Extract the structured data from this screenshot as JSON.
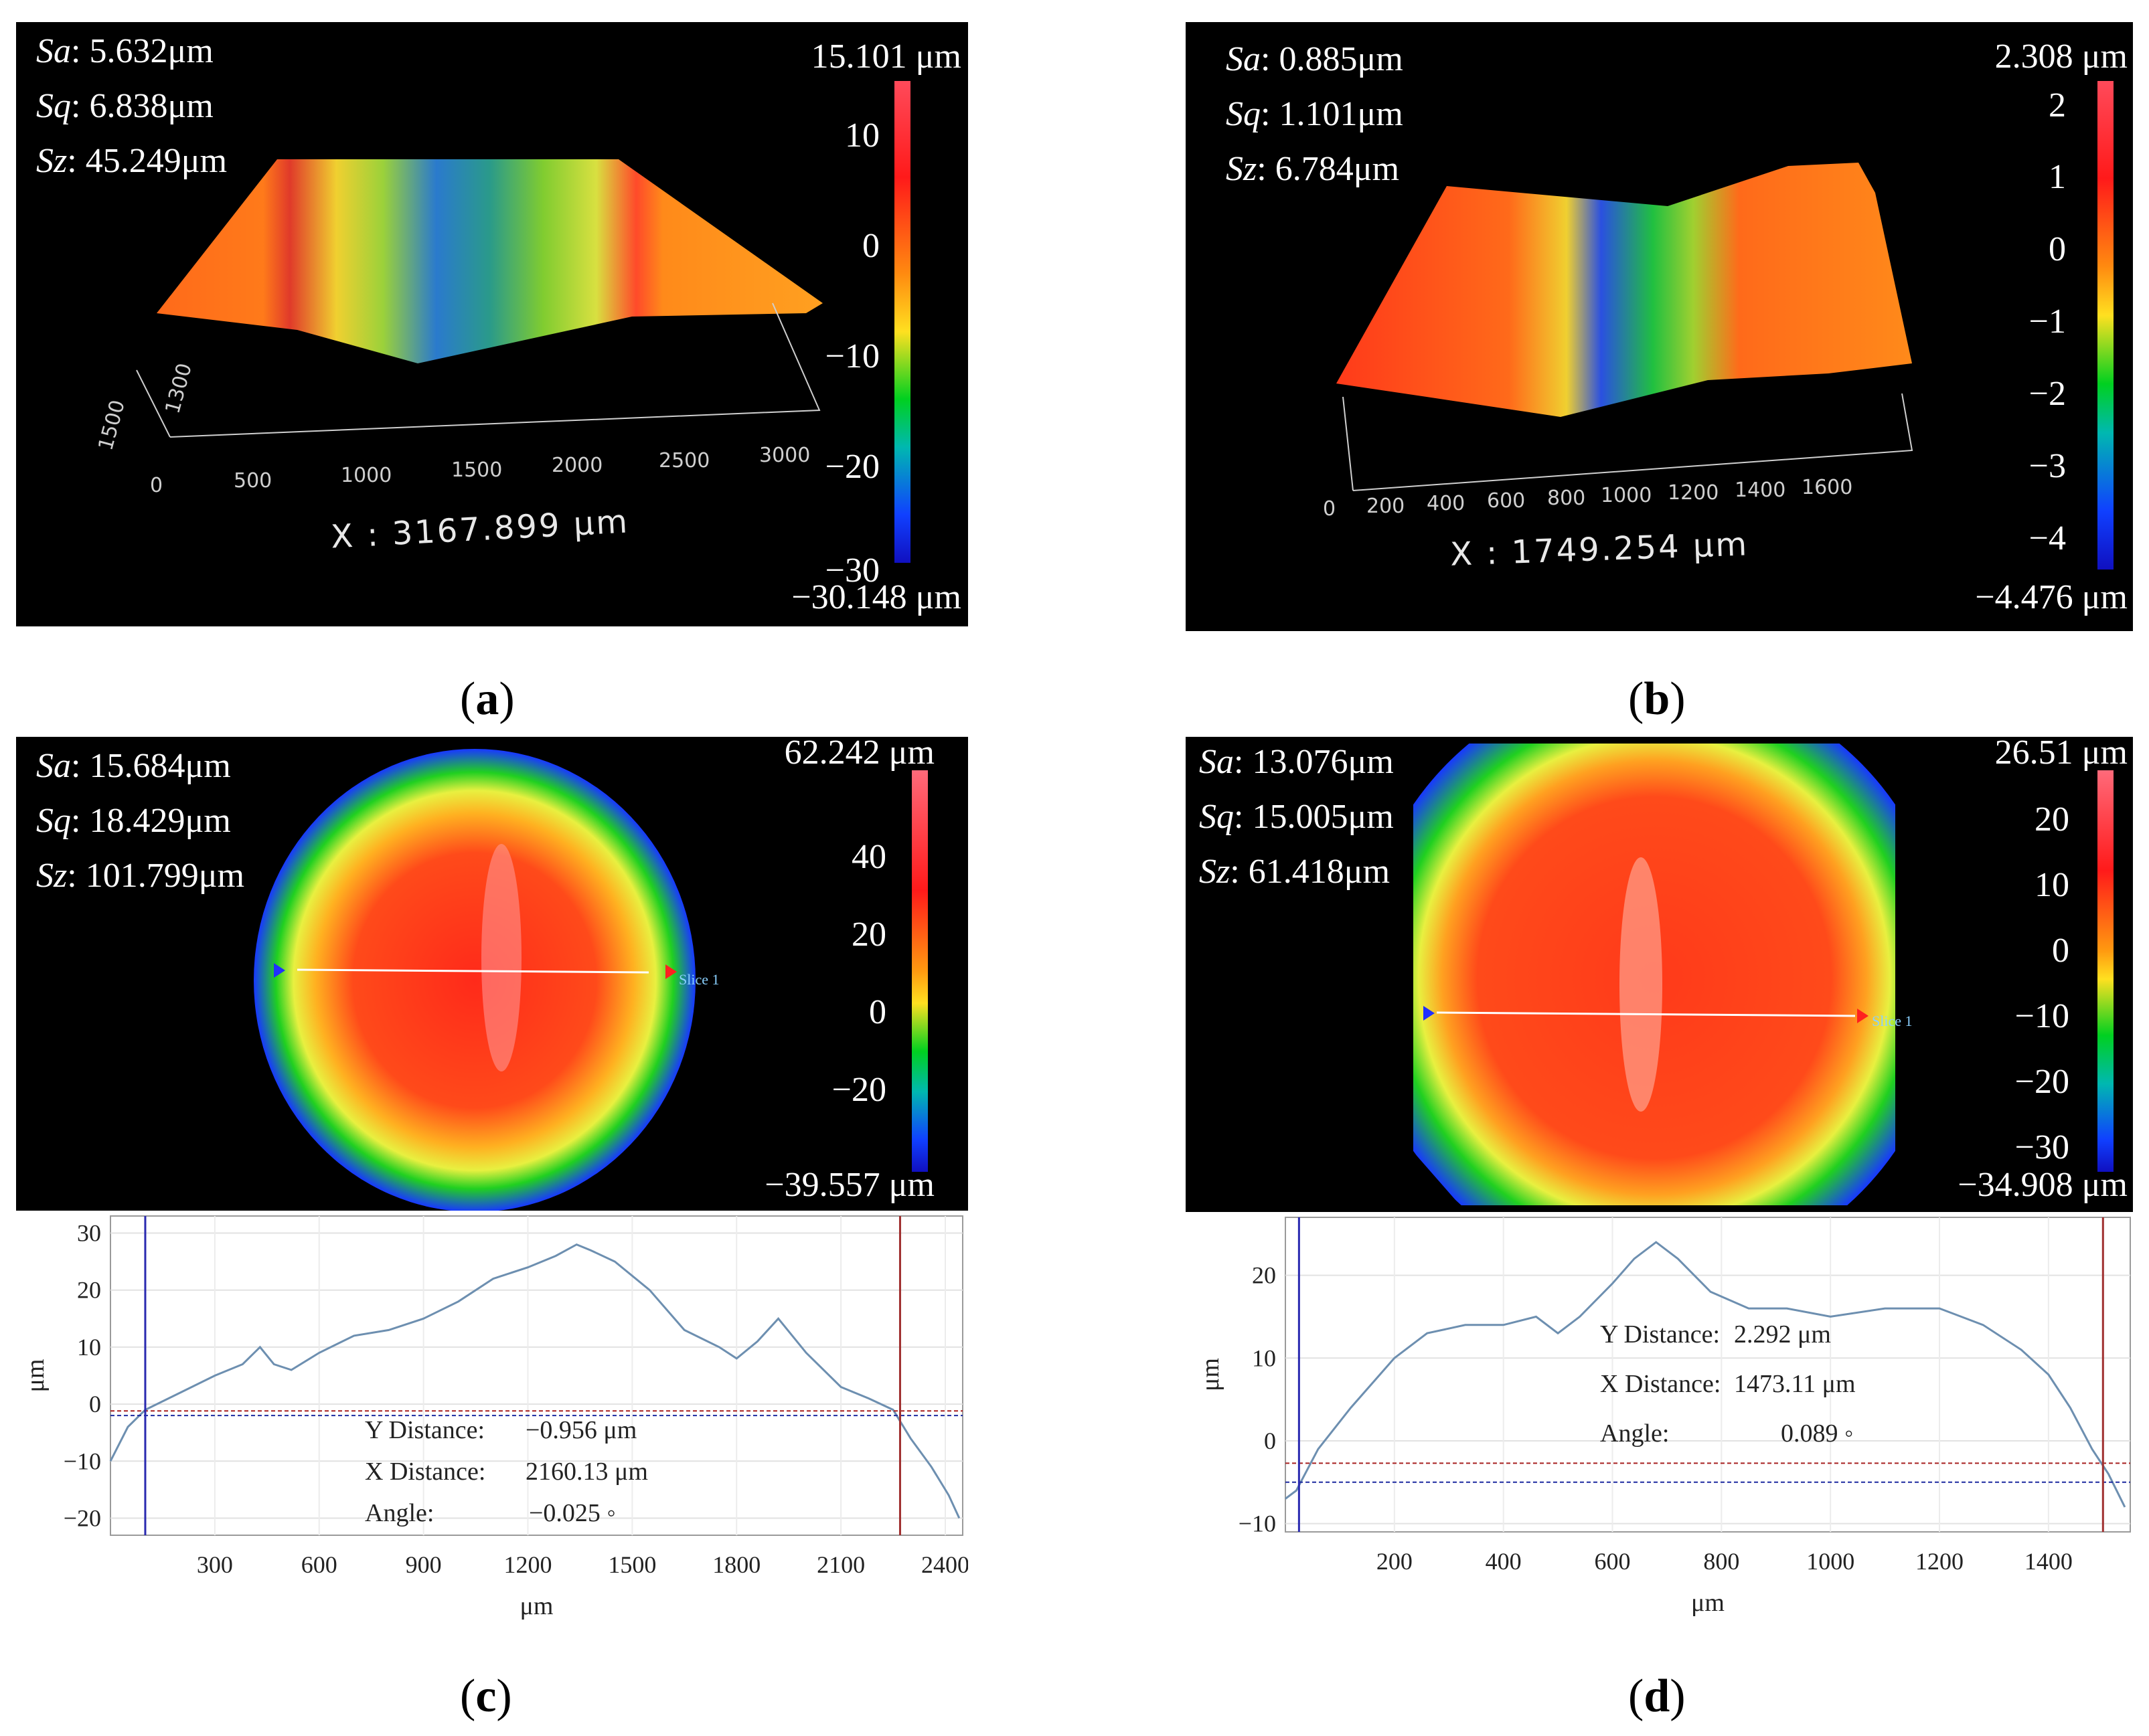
{
  "panels": {
    "a": {
      "caption_letter": "a",
      "stats": {
        "sa_label": "Sa",
        "sa": ": 5.632μm",
        "sq_label": "Sq",
        "sq": ": 6.838μm",
        "sz_label": "Sz",
        "sz": ": 45.249μm"
      },
      "colorbar": {
        "max_label": "15.101 μm",
        "min_label": "−30.148 μm",
        "ticks": [
          "10",
          "0",
          "−10",
          "−20",
          "−30"
        ],
        "range": [
          -30.148,
          15.101
        ]
      },
      "x_ticks": [
        "0",
        "500",
        "1000",
        "1500",
        "2000",
        "2500",
        "3000"
      ],
      "y_ticks": [
        "1500",
        "1300"
      ],
      "x_readout": "X : 3167.899 μm"
    },
    "b": {
      "caption_letter": "b",
      "stats": {
        "sa_label": "Sa",
        "sa": ": 0.885μm",
        "sq_label": "Sq",
        "sq": ": 1.101μm",
        "sz_label": "Sz",
        "sz": ": 6.784μm"
      },
      "colorbar": {
        "max_label": "2.308 μm",
        "min_label": "−4.476 μm",
        "ticks": [
          "2",
          "1",
          "0",
          "−1",
          "−2",
          "−3",
          "−4"
        ],
        "range": [
          -4.476,
          2.308
        ]
      },
      "x_ticks": [
        "0",
        "200",
        "400",
        "600",
        "800",
        "1000",
        "1200",
        "1400",
        "1600"
      ],
      "x_readout": "X : 1749.254 μm"
    },
    "c": {
      "caption_letter": "c",
      "stats": {
        "sa_label": "Sa",
        "sa": ": 15.684μm",
        "sq_label": "Sq",
        "sq": ": 18.429μm",
        "sz_label": "Sz",
        "sz": ": 101.799μm"
      },
      "colorbar": {
        "max_label": "62.242 μm",
        "min_label": "−39.557 μm",
        "ticks": [
          "40",
          "20",
          "0",
          "−20"
        ],
        "range": [
          -39.557,
          62.242
        ]
      },
      "slice_label": "Slice 1"
    },
    "d": {
      "caption_letter": "d",
      "stats": {
        "sa_label": "Sa",
        "sa": ": 13.076μm",
        "sq_label": "Sq",
        "sq": ": 15.005μm",
        "sz_label": "Sz",
        "sz": ": 61.418μm"
      },
      "colorbar": {
        "max_label": "26.51 μm",
        "min_label": "−34.908 μm",
        "ticks": [
          "20",
          "10",
          "0",
          "−10",
          "−20",
          "−30"
        ],
        "range": [
          -34.908,
          26.51
        ]
      },
      "slice_label": "Slice 1"
    }
  },
  "chart_data": [
    {
      "type": "line",
      "panel": "c",
      "xlabel": "μm",
      "ylabel": "μm",
      "xlim": [
        0,
        2450
      ],
      "ylim": [
        -23,
        33
      ],
      "x_ticks": [
        300,
        600,
        900,
        1200,
        1500,
        1800,
        2100,
        2400
      ],
      "y_ticks": [
        -20,
        -10,
        0,
        10,
        20,
        30
      ],
      "series": [
        {
          "name": "profile",
          "x": [
            0,
            50,
            100,
            200,
            300,
            380,
            430,
            470,
            520,
            600,
            700,
            800,
            900,
            1000,
            1100,
            1200,
            1280,
            1340,
            1380,
            1450,
            1550,
            1650,
            1750,
            1800,
            1860,
            1920,
            2000,
            2100,
            2180,
            2250,
            2300,
            2360,
            2410,
            2440
          ],
          "y": [
            -10,
            -4,
            -1,
            2,
            5,
            7,
            10,
            7,
            6,
            9,
            12,
            13,
            15,
            18,
            22,
            24,
            26,
            28,
            27,
            25,
            20,
            13,
            10,
            8,
            11,
            15,
            9,
            3,
            1,
            -1,
            -6,
            -11,
            -16,
            -20
          ]
        }
      ],
      "markers": {
        "blue_x": 100,
        "red_x": 2270,
        "blue_y": -2.0,
        "red_y": -1.2
      },
      "readout": {
        "y_label": "Y Distance:",
        "y_value": "−0.956  μm",
        "x_label": "X Distance:",
        "x_value": "2160.13  μm",
        "angle_label": "Angle:",
        "angle_value": "−0.025  ◦"
      }
    },
    {
      "type": "line",
      "panel": "d",
      "xlabel": "μm",
      "ylabel": "μm",
      "xlim": [
        0,
        1550
      ],
      "ylim": [
        -11,
        27
      ],
      "x_ticks": [
        200,
        400,
        600,
        800,
        1000,
        1200,
        1400
      ],
      "y_ticks": [
        -10,
        0,
        10,
        20
      ],
      "series": [
        {
          "name": "profile",
          "x": [
            0,
            20,
            60,
            120,
            200,
            260,
            330,
            400,
            460,
            500,
            540,
            600,
            640,
            680,
            720,
            780,
            850,
            920,
            1000,
            1100,
            1200,
            1280,
            1350,
            1400,
            1440,
            1480,
            1510,
            1540
          ],
          "y": [
            -7,
            -6,
            -1,
            4,
            10,
            13,
            14,
            14,
            15,
            13,
            15,
            19,
            22,
            24,
            22,
            18,
            16,
            16,
            15,
            16,
            16,
            14,
            11,
            8,
            4,
            -1,
            -4,
            -8
          ]
        }
      ],
      "markers": {
        "blue_x": 25,
        "red_x": 1500,
        "blue_y": -5.0,
        "red_y": -2.7
      },
      "readout": {
        "y_label": "Y Distance:",
        "y_value": "2.292  μm",
        "x_label": "X Distance:",
        "x_value": "1473.11  μm",
        "angle_label": "Angle:",
        "angle_value": "0.089  ◦"
      }
    }
  ]
}
